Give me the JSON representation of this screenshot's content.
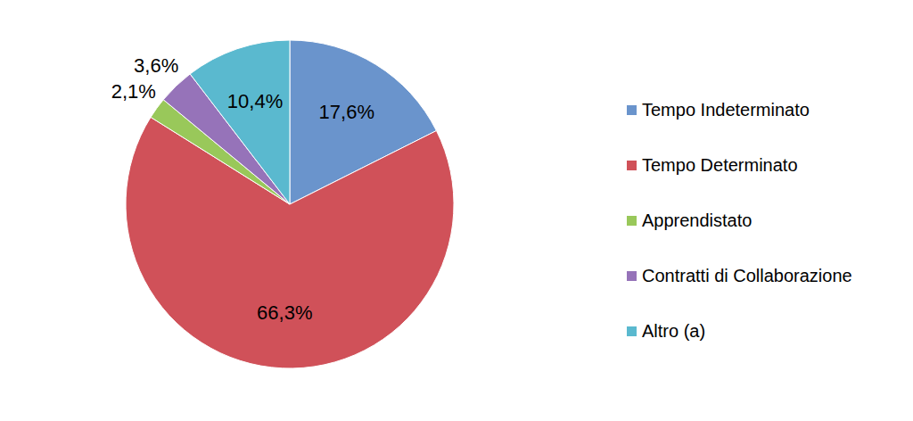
{
  "chart_data": {
    "type": "pie",
    "categories": [
      "Tempo Indeterminato",
      "Tempo Determinato",
      "Apprendistato",
      "Contratti di Collaborazione",
      "Altro (a)"
    ],
    "values": [
      17.6,
      66.3,
      2.1,
      3.6,
      10.4
    ],
    "value_labels": [
      "17,6%",
      "66,3%",
      "2,1%",
      "3,6%",
      "10,4%"
    ],
    "colors": [
      "#6a94cc",
      "#d05159",
      "#99c85a",
      "#9673b9",
      "#5ab9cf"
    ],
    "data_labels": true,
    "legend": "right"
  }
}
